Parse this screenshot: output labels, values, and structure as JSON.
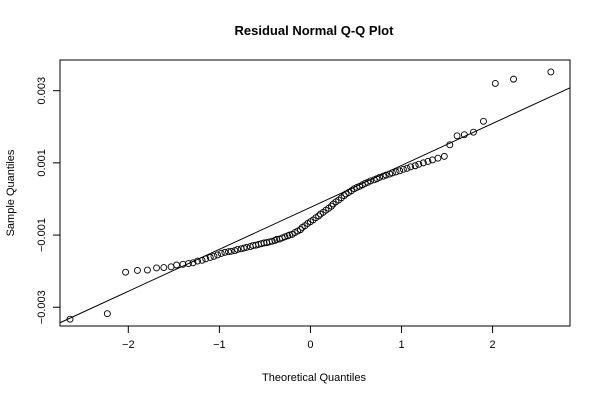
{
  "chart_data": {
    "type": "scatter",
    "title": "Residual Normal Q-Q Plot",
    "xlabel": "Theoretical Quantiles",
    "ylabel": "Sample Quantiles",
    "xlim": [
      -2.75,
      2.85
    ],
    "ylim": [
      -0.00352,
      0.00385
    ],
    "x_ticks": [
      -2,
      -1,
      0,
      1,
      2
    ],
    "x_tick_labels": [
      "−2",
      "−1",
      "0",
      "1",
      "2"
    ],
    "y_ticks": [
      -0.003,
      -0.001,
      0.001,
      0.003
    ],
    "y_tick_labels": [
      "−0.003",
      "−0.001",
      "0.001",
      "0.003"
    ],
    "grid": false,
    "reference_line": {
      "x": [
        -2.75,
        2.85
      ],
      "y": [
        -0.00343,
        0.00308
      ]
    },
    "points": [
      [
        -2.64,
        -0.00333
      ],
      [
        -2.23,
        -0.00318
      ],
      [
        -2.03,
        -0.00203
      ],
      [
        -1.9,
        -0.00198
      ],
      [
        -1.79,
        -0.00197
      ],
      [
        -1.69,
        -0.00191
      ],
      [
        -1.61,
        -0.0019
      ],
      [
        -1.53,
        -0.00188
      ],
      [
        -1.47,
        -0.00183
      ],
      [
        -1.4,
        -0.00181
      ],
      [
        -1.34,
        -0.00179
      ],
      [
        -1.29,
        -0.00177
      ],
      [
        -1.24,
        -0.00172
      ],
      [
        -1.19,
        -0.0017
      ],
      [
        -1.15,
        -0.00166
      ],
      [
        -1.1,
        -0.00162
      ],
      [
        -1.06,
        -0.00159
      ],
      [
        -1.02,
        -0.00155
      ],
      [
        -0.98,
        -0.00151
      ],
      [
        -0.94,
        -0.00148
      ],
      [
        -0.9,
        -0.00146
      ],
      [
        -0.87,
        -0.00145
      ],
      [
        -0.83,
        -0.00143
      ],
      [
        -0.8,
        -0.0014
      ],
      [
        -0.76,
        -0.00138
      ],
      [
        -0.73,
        -0.00136
      ],
      [
        -0.7,
        -0.00134
      ],
      [
        -0.66,
        -0.00132
      ],
      [
        -0.63,
        -0.00129
      ],
      [
        -0.6,
        -0.00128
      ],
      [
        -0.57,
        -0.00126
      ],
      [
        -0.54,
        -0.00124
      ],
      [
        -0.51,
        -0.00122
      ],
      [
        -0.48,
        -0.00121
      ],
      [
        -0.45,
        -0.00119
      ],
      [
        -0.42,
        -0.00117
      ],
      [
        -0.39,
        -0.00115
      ],
      [
        -0.37,
        -0.00112
      ],
      [
        -0.34,
        -0.00111
      ],
      [
        -0.31,
        -0.00108
      ],
      [
        -0.28,
        -0.00105
      ],
      [
        -0.25,
        -0.00102
      ],
      [
        -0.23,
        -0.001
      ],
      [
        -0.2,
        -0.00098
      ],
      [
        -0.17,
        -0.00093
      ],
      [
        -0.14,
        -0.00089
      ],
      [
        -0.11,
        -0.00085
      ],
      [
        -0.09,
        -0.00079
      ],
      [
        -0.06,
        -0.00074
      ],
      [
        -0.03,
        -0.00068
      ],
      [
        0.0,
        -0.00063
      ],
      [
        0.03,
        -0.00058
      ],
      [
        0.06,
        -0.00052
      ],
      [
        0.09,
        -0.00047
      ],
      [
        0.11,
        -0.00042
      ],
      [
        0.14,
        -0.00037
      ],
      [
        0.17,
        -0.00031
      ],
      [
        0.2,
        -0.00026
      ],
      [
        0.23,
        -0.0002
      ],
      [
        0.25,
        -0.00014
      ],
      [
        0.28,
        -8e-05
      ],
      [
        0.31,
        -3e-05
      ],
      [
        0.34,
        3e-05
      ],
      [
        0.37,
        9e-05
      ],
      [
        0.39,
        0.00014
      ],
      [
        0.42,
        0.00018
      ],
      [
        0.45,
        0.00023
      ],
      [
        0.48,
        0.00028
      ],
      [
        0.51,
        0.00032
      ],
      [
        0.54,
        0.00035
      ],
      [
        0.57,
        0.00039
      ],
      [
        0.6,
        0.00043
      ],
      [
        0.63,
        0.00046
      ],
      [
        0.66,
        0.0005
      ],
      [
        0.7,
        0.00053
      ],
      [
        0.73,
        0.00056
      ],
      [
        0.76,
        0.0006
      ],
      [
        0.8,
        0.00063
      ],
      [
        0.83,
        0.00066
      ],
      [
        0.87,
        0.00069
      ],
      [
        0.9,
        0.00072
      ],
      [
        0.94,
        0.00075
      ],
      [
        0.98,
        0.00078
      ],
      [
        1.02,
        0.00082
      ],
      [
        1.06,
        0.00085
      ],
      [
        1.1,
        0.00089
      ],
      [
        1.15,
        0.00092
      ],
      [
        1.19,
        0.00096
      ],
      [
        1.24,
        0.001
      ],
      [
        1.29,
        0.00104
      ],
      [
        1.34,
        0.00108
      ],
      [
        1.4,
        0.00113
      ],
      [
        1.47,
        0.00118
      ],
      [
        1.53,
        0.0015
      ],
      [
        1.61,
        0.00175
      ],
      [
        1.69,
        0.00178
      ],
      [
        1.79,
        0.00185
      ],
      [
        1.9,
        0.00215
      ],
      [
        2.03,
        0.0032
      ],
      [
        2.23,
        0.00332
      ],
      [
        2.64,
        0.00352
      ]
    ]
  }
}
